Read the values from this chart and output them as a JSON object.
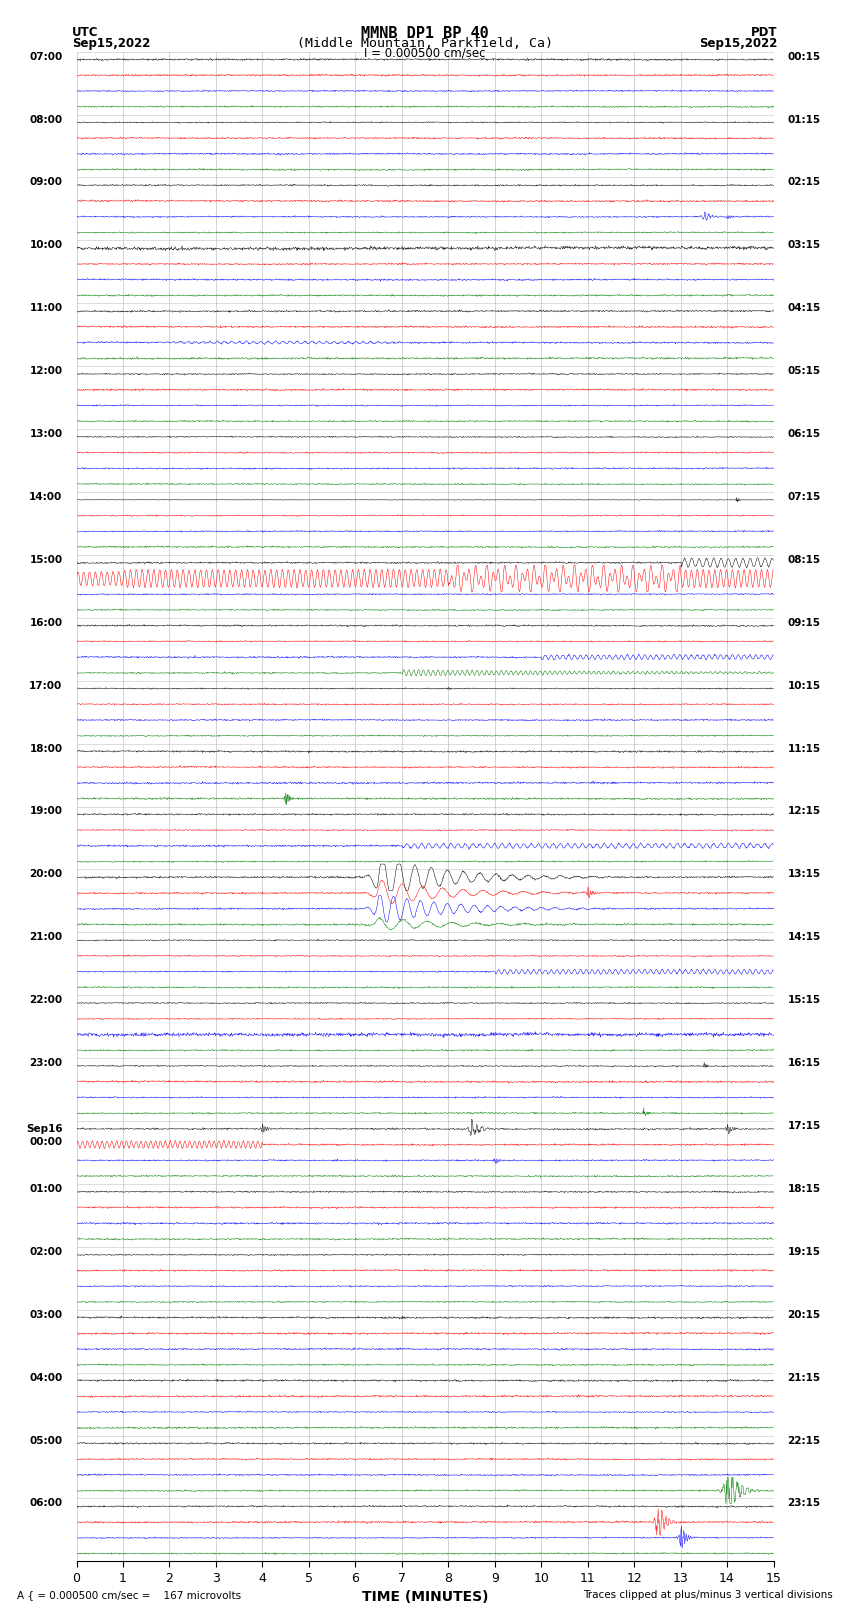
{
  "title_line1": "MMNB DP1 BP 40",
  "title_line2": "(Middle Mountain, Parkfield, Ca)",
  "scale_text": "I = 0.000500 cm/sec",
  "utc_label": "UTC",
  "utc_date": "Sep15,2022",
  "pdt_label": "PDT",
  "pdt_date": "Sep15,2022",
  "xlabel": "TIME (MINUTES)",
  "bottom_left": "A { = 0.000500 cm/sec =    167 microvolts",
  "bottom_right": "Traces clipped at plus/minus 3 vertical divisions",
  "x_min": 0,
  "x_max": 15,
  "trace_colors": [
    "black",
    "red",
    "blue",
    "green"
  ],
  "background_color": "white",
  "grid_color": "#aaaaaa",
  "n_hour_rows": 24,
  "traces_per_hour": 4,
  "utc_hour_labels": [
    "07:00",
    "08:00",
    "09:00",
    "10:00",
    "11:00",
    "12:00",
    "13:00",
    "14:00",
    "15:00",
    "16:00",
    "17:00",
    "18:00",
    "19:00",
    "20:00",
    "21:00",
    "22:00",
    "23:00",
    "Sep16\n00:00",
    "01:00",
    "02:00",
    "03:00",
    "04:00",
    "05:00",
    "06:00"
  ],
  "pdt_hour_labels": [
    "00:15",
    "01:15",
    "02:15",
    "03:15",
    "04:15",
    "05:15",
    "06:15",
    "07:15",
    "08:15",
    "09:15",
    "10:15",
    "11:15",
    "12:15",
    "13:15",
    "14:15",
    "15:15",
    "16:15",
    "17:15",
    "18:15",
    "19:15",
    "20:15",
    "21:15",
    "22:15",
    "23:15"
  ]
}
